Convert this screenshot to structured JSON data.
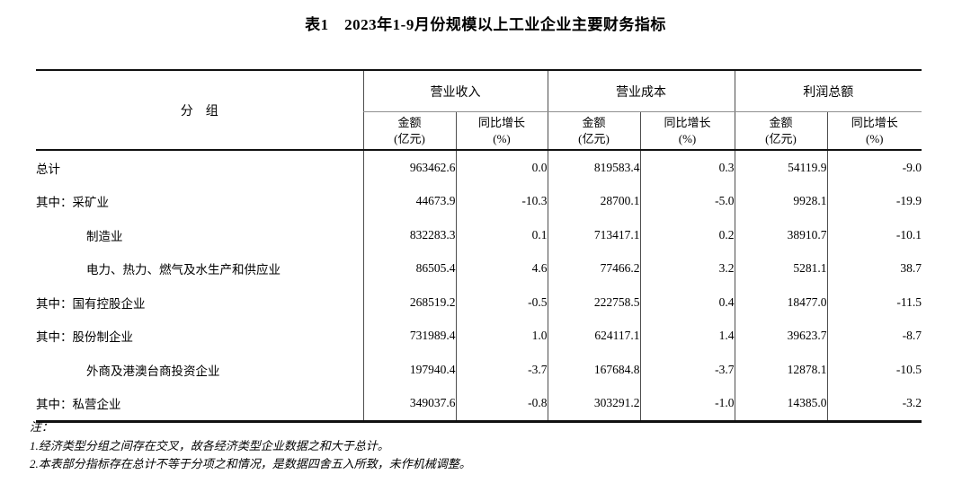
{
  "title": "表1　2023年1-9月份规模以上工业企业主要财务指标",
  "table": {
    "group_header": "分　组",
    "col_groups": [
      {
        "label": "营业收入"
      },
      {
        "label": "营业成本"
      },
      {
        "label": "利润总额"
      }
    ],
    "subcols": {
      "amount": "金额",
      "amount_unit": "(亿元)",
      "growth": "同比增长",
      "growth_unit": "(%)"
    },
    "rows": [
      {
        "label": "总计",
        "indent": false,
        "values": [
          "963462.6",
          "0.0",
          "819583.4",
          "0.3",
          "54119.9",
          "-9.0"
        ]
      },
      {
        "label": "其中：采矿业",
        "indent": false,
        "values": [
          "44673.9",
          "-10.3",
          "28700.1",
          "-5.0",
          "9928.1",
          "-19.9"
        ]
      },
      {
        "label": "制造业",
        "indent": true,
        "values": [
          "832283.3",
          "0.1",
          "713417.1",
          "0.2",
          "38910.7",
          "-10.1"
        ]
      },
      {
        "label": "电力、热力、燃气及水生产和供应业",
        "indent": true,
        "values": [
          "86505.4",
          "4.6",
          "77466.2",
          "3.2",
          "5281.1",
          "38.7"
        ]
      },
      {
        "label": "其中：国有控股企业",
        "indent": false,
        "values": [
          "268519.2",
          "-0.5",
          "222758.5",
          "0.4",
          "18477.0",
          "-11.5"
        ]
      },
      {
        "label": "其中：股份制企业",
        "indent": false,
        "values": [
          "731989.4",
          "1.0",
          "624117.1",
          "1.4",
          "39623.7",
          "-8.7"
        ]
      },
      {
        "label": "外商及港澳台商投资企业",
        "indent": true,
        "values": [
          "197940.4",
          "-3.7",
          "167684.8",
          "-3.7",
          "12878.1",
          "-10.5"
        ]
      },
      {
        "label": "其中：私营企业",
        "indent": false,
        "values": [
          "349037.6",
          "-0.8",
          "303291.2",
          "-1.0",
          "14385.0",
          "-3.2"
        ]
      }
    ]
  },
  "notes": {
    "heading": "注：",
    "items": [
      "1.经济类型分组之间存在交叉，故各经济类型企业数据之和大于总计。",
      "2.本表部分指标存在总计不等于分项之和情况，是数据四舍五入所致，未作机械调整。"
    ]
  },
  "colors": {
    "background": "#ffffff",
    "text": "#000000",
    "border_strong": "#111111",
    "border_light": "#8f8f8f",
    "border_vertical": "#4d4d4d"
  }
}
